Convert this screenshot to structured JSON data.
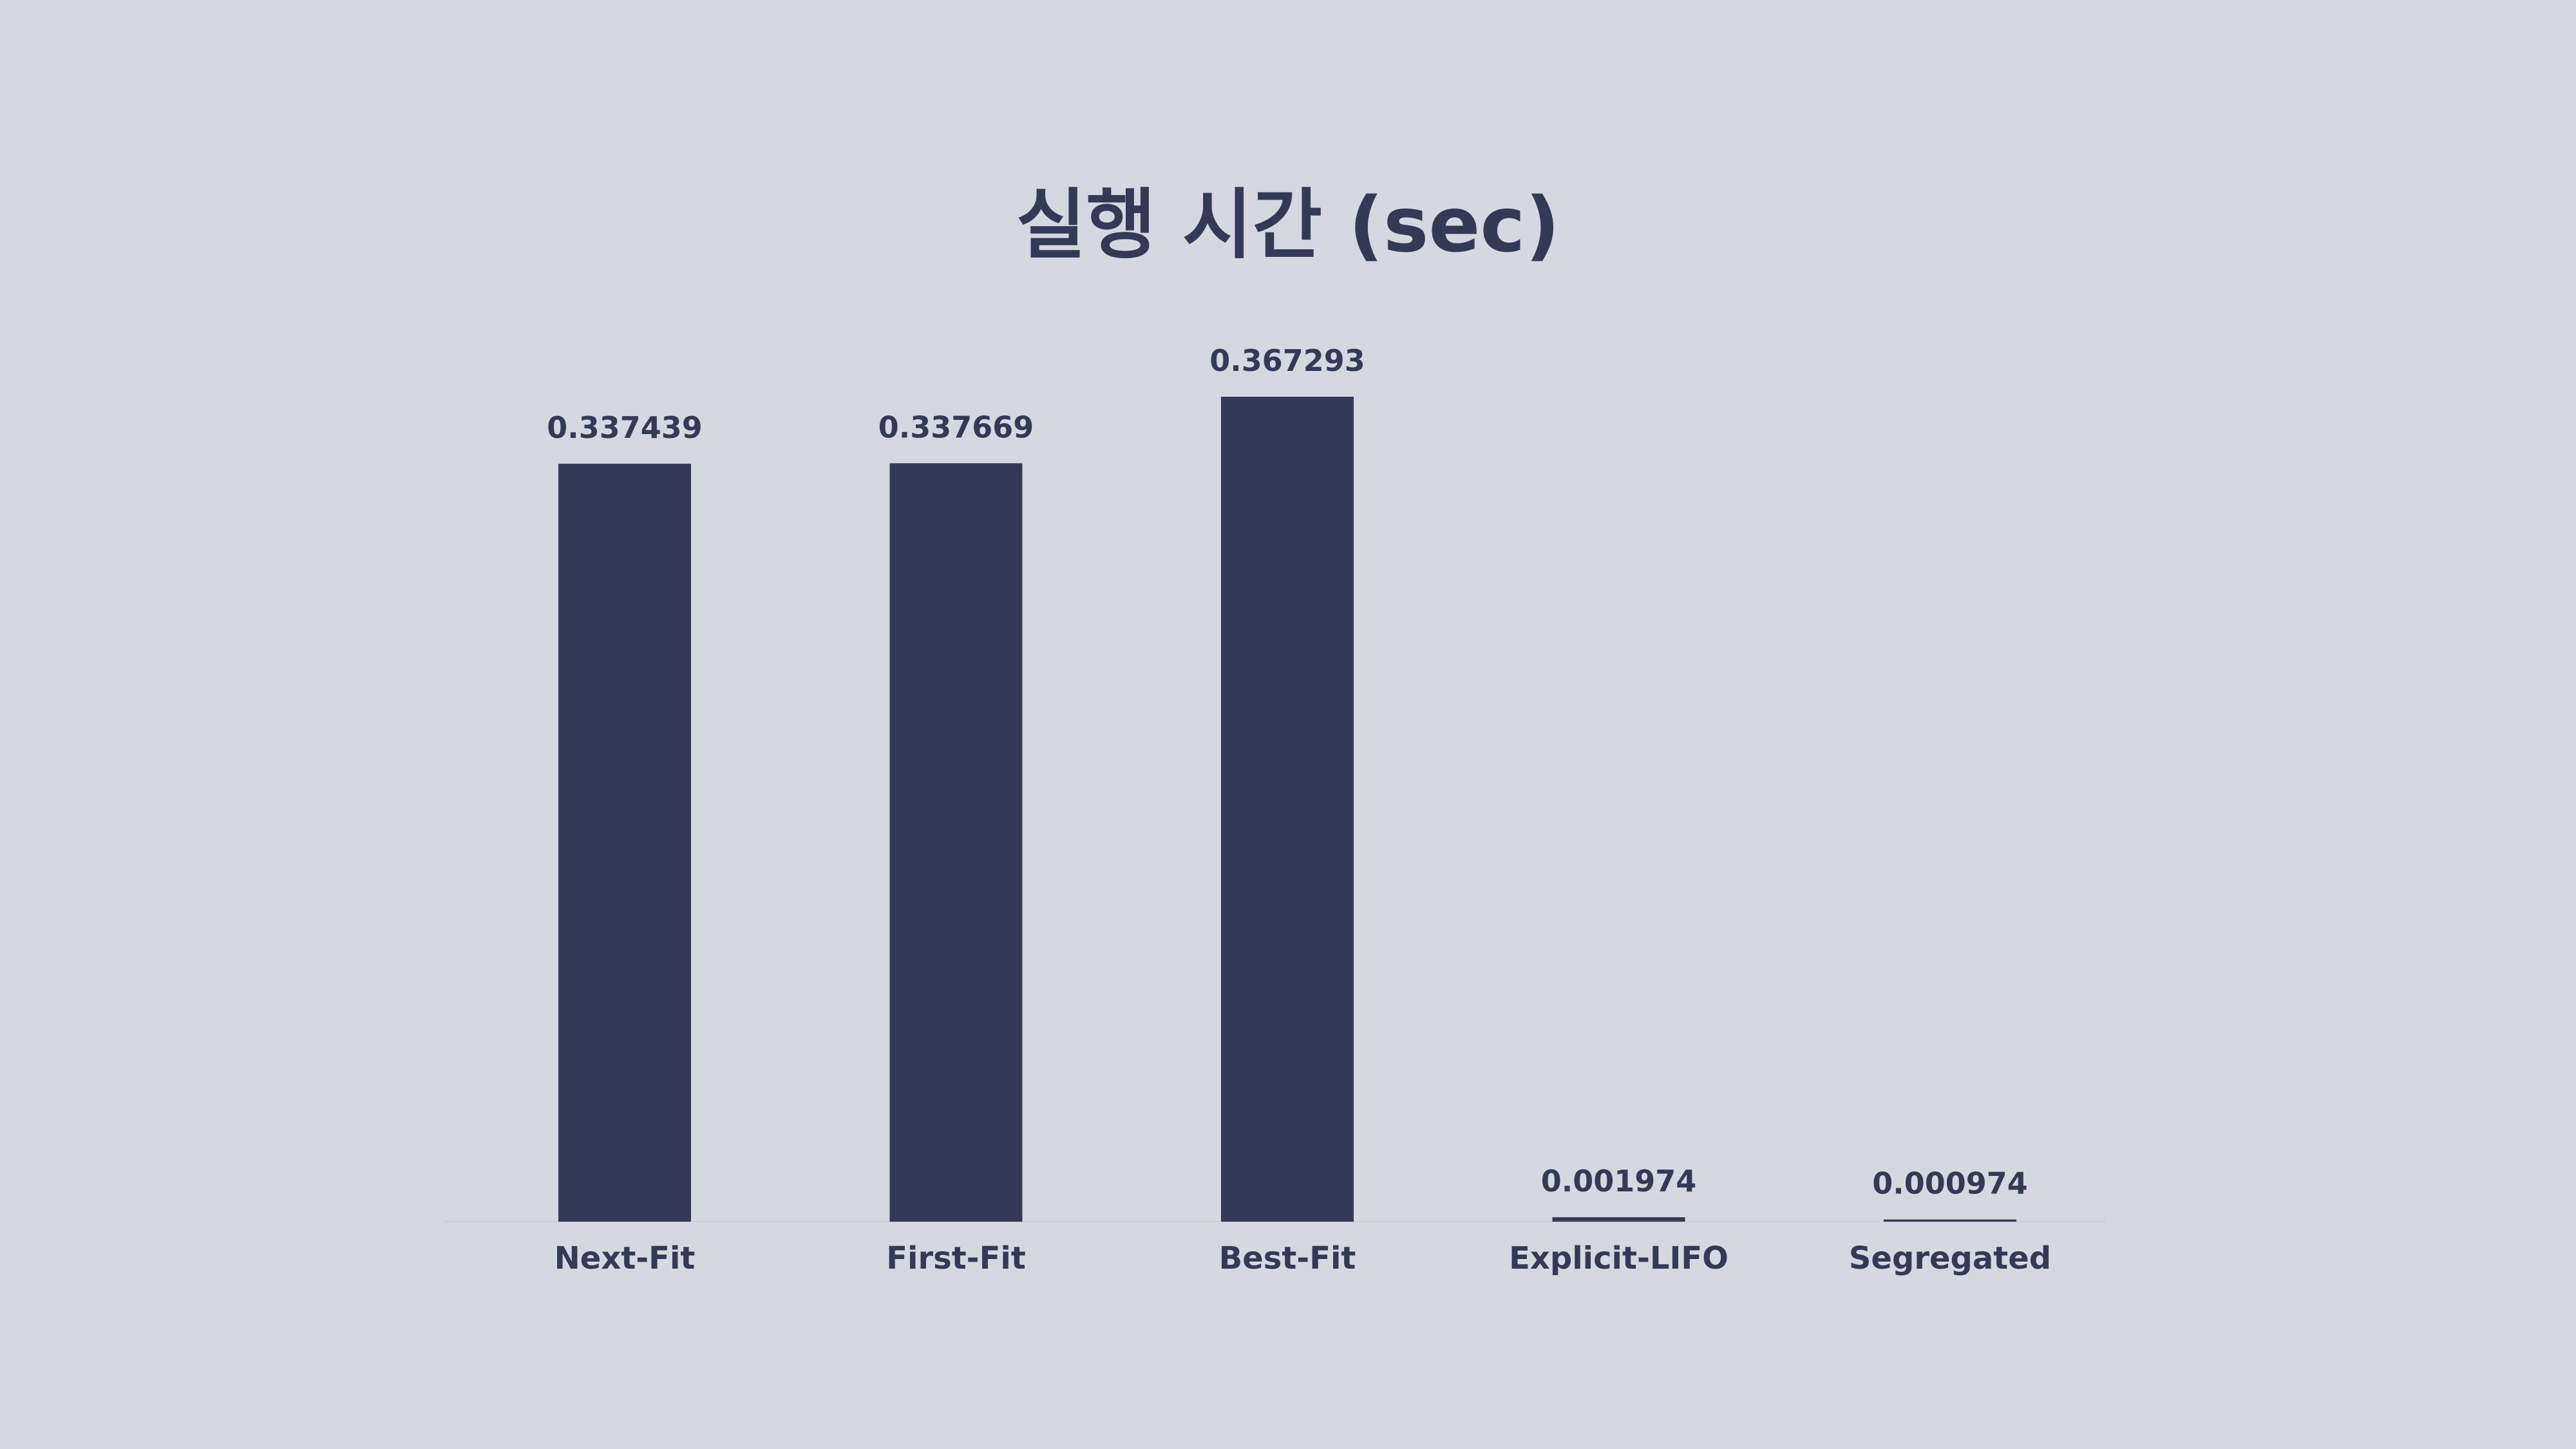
{
  "chart_data": {
    "type": "bar",
    "title": "실행 시간 (sec)",
    "xlabel": "",
    "ylabel": "",
    "categories": [
      "Next-Fit",
      "First-Fit",
      "Best-Fit",
      "Explicit-LIFO",
      "Segregated"
    ],
    "values": [
      0.337439,
      0.337669,
      0.367293,
      0.001974,
      0.000974
    ],
    "value_labels": [
      "0.337439",
      "0.337669",
      "0.367293",
      "0.001974",
      "0.000974"
    ],
    "ylim": [
      0,
      0.367293
    ],
    "grid": false,
    "legend": "none",
    "colors": {
      "background": "#d5d8e1",
      "bar": "#343a56",
      "text": "#343a56",
      "baseline": "#ccd0da"
    }
  }
}
